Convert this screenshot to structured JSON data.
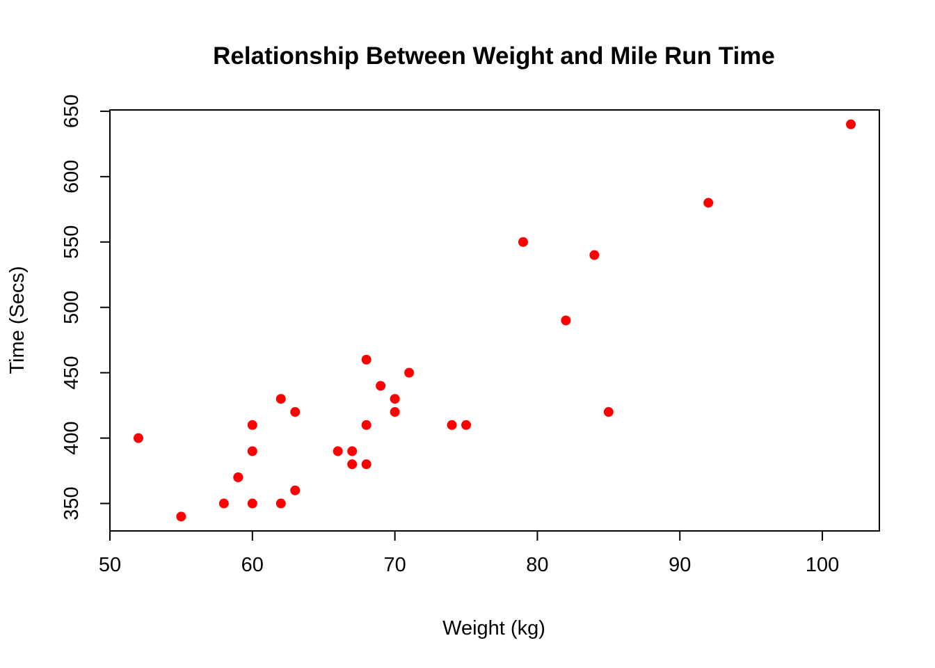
{
  "chart_data": {
    "type": "scatter",
    "title": "Relationship Between Weight and Mile Run Time",
    "xlabel": "Weight (kg)",
    "ylabel": "Time (Secs)",
    "xlim": [
      50,
      104
    ],
    "ylim": [
      329,
      651
    ],
    "x_ticks": [
      50,
      60,
      70,
      80,
      90,
      100
    ],
    "y_ticks": [
      350,
      400,
      450,
      500,
      550,
      600,
      650
    ],
    "x_tick_labels": [
      "50",
      "60",
      "70",
      "80",
      "90",
      "100"
    ],
    "y_tick_labels": [
      "350",
      "400",
      "450",
      "500",
      "550",
      "600",
      "650"
    ],
    "grid": false,
    "legend": "none",
    "point_color": "#ff0000",
    "points": [
      {
        "x": 52,
        "y": 400
      },
      {
        "x": 55,
        "y": 340
      },
      {
        "x": 58,
        "y": 350
      },
      {
        "x": 59,
        "y": 370
      },
      {
        "x": 59,
        "y": 370
      },
      {
        "x": 60,
        "y": 350
      },
      {
        "x": 60,
        "y": 390
      },
      {
        "x": 60,
        "y": 410
      },
      {
        "x": 62,
        "y": 350
      },
      {
        "x": 62,
        "y": 430
      },
      {
        "x": 63,
        "y": 360
      },
      {
        "x": 63,
        "y": 420
      },
      {
        "x": 66,
        "y": 390
      },
      {
        "x": 67,
        "y": 380
      },
      {
        "x": 67,
        "y": 390
      },
      {
        "x": 68,
        "y": 380
      },
      {
        "x": 68,
        "y": 410
      },
      {
        "x": 68,
        "y": 460
      },
      {
        "x": 69,
        "y": 440
      },
      {
        "x": 70,
        "y": 420
      },
      {
        "x": 70,
        "y": 430
      },
      {
        "x": 71,
        "y": 450
      },
      {
        "x": 74,
        "y": 410
      },
      {
        "x": 75,
        "y": 410
      },
      {
        "x": 79,
        "y": 550
      },
      {
        "x": 82,
        "y": 490
      },
      {
        "x": 84,
        "y": 540
      },
      {
        "x": 85,
        "y": 420
      },
      {
        "x": 92,
        "y": 580
      },
      {
        "x": 102,
        "y": 640
      }
    ]
  }
}
